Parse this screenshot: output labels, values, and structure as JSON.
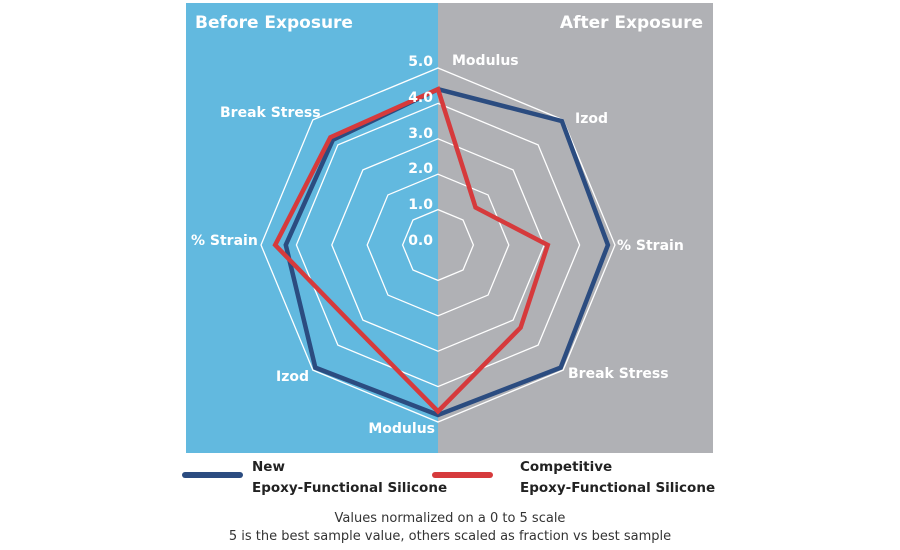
{
  "chart_data": {
    "type": "radar",
    "panels": {
      "left_title": "Before Exposure",
      "right_title": "After Exposure"
    },
    "axes": [
      "Modulus",
      "Izod",
      "% Strain",
      "Break Stress",
      "Modulus",
      "Izod",
      "% Strain",
      "Break Stress"
    ],
    "axis_groups": [
      "shared",
      "After Exposure",
      "After Exposure",
      "After Exposure",
      "shared",
      "Before Exposure",
      "Before Exposure",
      "Before Exposure"
    ],
    "ring_labels": [
      "0.0",
      "1.0",
      "2.0",
      "3.0",
      "4.0",
      "5.0"
    ],
    "rlim": [
      0,
      5
    ],
    "series": [
      {
        "name": "New Epoxy-Functional Silicone",
        "label_line1": "New",
        "label_line2": "Epoxy-Functional Silicone",
        "color": "#2b4c80",
        "values": [
          4.4,
          4.95,
          4.8,
          4.9,
          4.8,
          4.9,
          4.3,
          4.2
        ]
      },
      {
        "name": "Competitive Epoxy-Functional Silicone",
        "label_line1": "Competitive",
        "label_line2": "Epoxy-Functional Silicone",
        "color": "#d63a3c",
        "values": [
          4.4,
          1.5,
          3.1,
          3.3,
          4.7,
          3.3,
          4.6,
          4.3
        ]
      }
    ],
    "legend": "bottom",
    "notes": [
      "Values normalized on a 0 to 5 scale",
      "5 is the best sample value, others scaled as fraction vs best sample"
    ],
    "colors": {
      "before_bg": "#62b9df",
      "after_bg": "#b0b1b5",
      "grid": "#ffffff"
    }
  }
}
